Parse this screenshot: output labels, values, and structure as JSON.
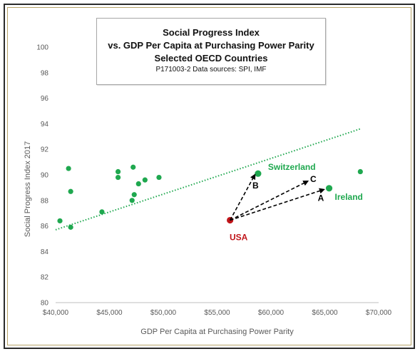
{
  "chart_data": {
    "type": "scatter",
    "title_lines": [
      "Social Progress Index",
      "vs. GDP Per Capita at Purchasing Power Parity",
      "Selected OECD Countries"
    ],
    "subtitle": "P171003-2 Data sources: SPI, IMF",
    "xlabel": "GDP Per Capita at Purchasing Power Parity",
    "ylabel": "Social Progress Index 2017",
    "xlim": [
      40000,
      70000
    ],
    "ylim": [
      80,
      100
    ],
    "x_ticks": [
      40000,
      45000,
      50000,
      55000,
      60000,
      65000,
      70000
    ],
    "x_tick_labels": [
      "$40,000",
      "$45,000",
      "$50,000",
      "$55,000",
      "$60,000",
      "$65,000",
      "$70,000"
    ],
    "y_ticks": [
      80,
      82,
      84,
      86,
      88,
      90,
      92,
      94,
      96,
      98,
      100
    ],
    "y_tick_labels": [
      "80",
      "82",
      "84",
      "86",
      "88",
      "90",
      "92",
      "94",
      "96",
      "98",
      "100"
    ],
    "grid": false,
    "points": [
      {
        "x": 40400,
        "y": 86.4,
        "color": "#1fa84f"
      },
      {
        "x": 41200,
        "y": 90.5,
        "color": "#1fa84f"
      },
      {
        "x": 41400,
        "y": 88.7,
        "color": "#1fa84f"
      },
      {
        "x": 41400,
        "y": 85.9,
        "color": "#1fa84f"
      },
      {
        "x": 44300,
        "y": 87.1,
        "color": "#1fa84f"
      },
      {
        "x": 45800,
        "y": 90.25,
        "color": "#1fa84f"
      },
      {
        "x": 45800,
        "y": 89.8,
        "color": "#1fa84f"
      },
      {
        "x": 47100,
        "y": 88.0,
        "color": "#1fa84f"
      },
      {
        "x": 47200,
        "y": 90.6,
        "color": "#1fa84f"
      },
      {
        "x": 47300,
        "y": 88.45,
        "color": "#1fa84f"
      },
      {
        "x": 47700,
        "y": 89.3,
        "color": "#1fa84f"
      },
      {
        "x": 48300,
        "y": 89.6,
        "color": "#1fa84f"
      },
      {
        "x": 49600,
        "y": 89.8,
        "color": "#1fa84f"
      },
      {
        "x": 68300,
        "y": 90.25,
        "color": "#1fa84f"
      }
    ],
    "highlighted": [
      {
        "label": "USA",
        "x": 56200,
        "y": 86.45,
        "color": "#c0151a"
      },
      {
        "label": "Switzerland",
        "x": 58800,
        "y": 90.1,
        "color": "#1fa84f"
      },
      {
        "label": "Ireland",
        "x": 65400,
        "y": 88.95,
        "color": "#1fa84f"
      }
    ],
    "trendline": {
      "style": "dotted",
      "color": "#1fa84f",
      "x": [
        40000,
        68300
      ],
      "y": [
        85.7,
        93.6
      ]
    },
    "arrows": [
      {
        "label": "A",
        "from": [
          56200,
          86.45
        ],
        "to": [
          64900,
          88.85
        ]
      },
      {
        "label": "B",
        "from": [
          56200,
          86.45
        ],
        "to": [
          58500,
          90.0
        ]
      },
      {
        "label": "C",
        "from": [
          56200,
          86.45
        ],
        "to": [
          63400,
          89.5
        ]
      }
    ]
  }
}
